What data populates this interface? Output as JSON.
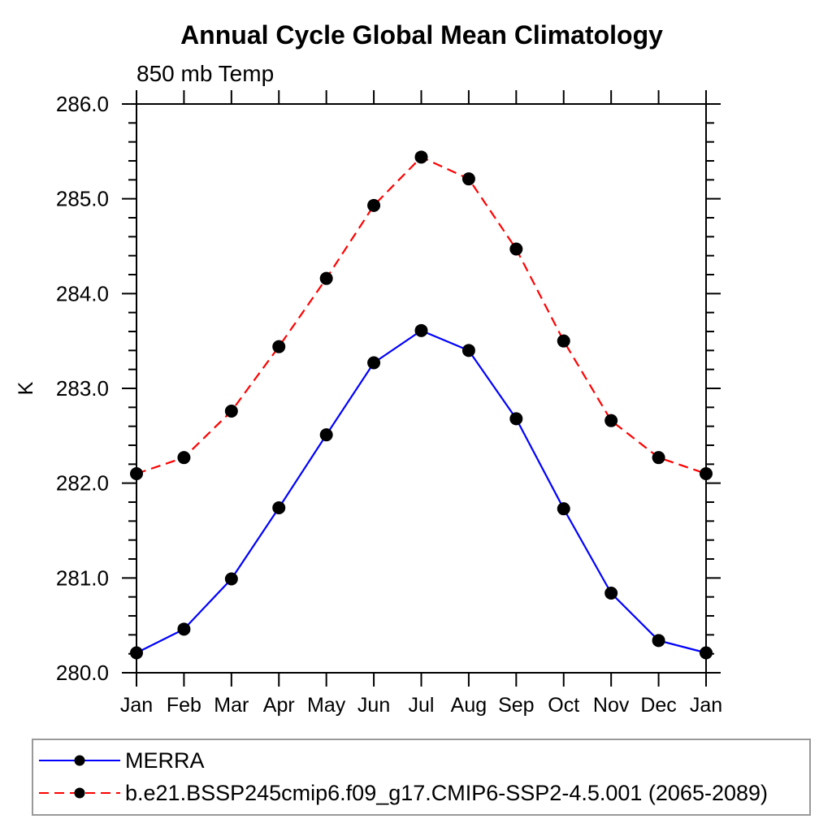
{
  "chart_data": {
    "type": "line",
    "title": "Annual Cycle Global Mean Climatology",
    "subtitle": "850 mb Temp",
    "ylabel": "K",
    "xlabel": "",
    "x_categories": [
      "Jan",
      "Feb",
      "Mar",
      "Apr",
      "May",
      "Jun",
      "Jul",
      "Aug",
      "Sep",
      "Oct",
      "Nov",
      "Dec",
      "Jan"
    ],
    "series": [
      {
        "name": "MERRA",
        "color": "#0000ff",
        "line_style": "solid",
        "marker": "filled-circle",
        "marker_color": "#000000",
        "values": [
          280.21,
          280.46,
          280.99,
          281.74,
          282.51,
          283.27,
          283.61,
          283.4,
          282.68,
          281.73,
          280.84,
          280.34,
          280.21
        ]
      },
      {
        "name": "b.e21.BSSP245cmip6.f09_g17.CMIP6-SSP2-4.5.001 (2065-2089)",
        "color": "#ff0000",
        "line_style": "dashed",
        "marker": "filled-circle",
        "marker_color": "#000000",
        "values": [
          282.1,
          282.27,
          282.76,
          283.44,
          284.16,
          284.93,
          285.44,
          285.21,
          284.47,
          283.5,
          282.66,
          282.27,
          282.1
        ]
      }
    ],
    "ylim": [
      280.0,
      286.0
    ],
    "ytick_step": 1.0,
    "yminor_step": 0.2,
    "ytick_format_decimals": 1,
    "grid": false,
    "axis_color": "#000000",
    "legend_position": "bottom-left-box",
    "legend_border_color": "#999999"
  }
}
